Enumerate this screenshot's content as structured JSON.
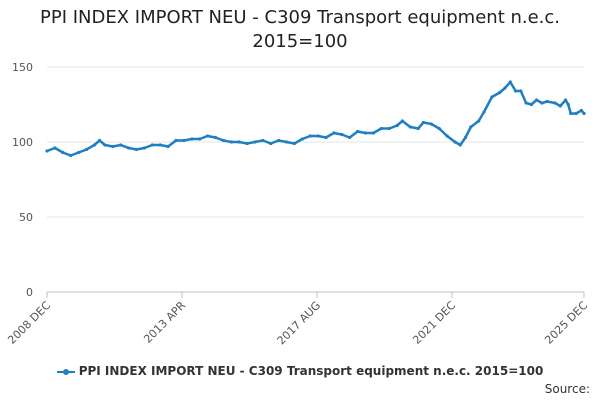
{
  "title_line1": "PPI INDEX IMPORT NEU - C309 Transport equipment n.e.c.",
  "title_line2": "2015=100",
  "source_label": "Source:",
  "colors": {
    "series": "#1f7fc0",
    "grid": "#e6e6e6",
    "axis": "#c0c0c0",
    "text": "#555555"
  },
  "chart_data": {
    "type": "line",
    "title": "PPI INDEX IMPORT NEU - C309 Transport equipment n.e.c. 2015=100",
    "xlabel": "",
    "ylabel": "",
    "ylim": [
      0,
      160
    ],
    "yticks": [
      0,
      50,
      100,
      150
    ],
    "grid": true,
    "legend_position": "bottom",
    "x_tick_labels": [
      "2008 DEC",
      "2013 APR",
      "2017 AUG",
      "2021 DEC",
      "2025 DEC"
    ],
    "series": [
      {
        "name": "PPI INDEX IMPORT NEU - C309 Transport equipment n.e.c. 2015=100",
        "color": "#1f7fc0",
        "points": [
          [
            "2008-12",
            94
          ],
          [
            "2009-03",
            96
          ],
          [
            "2009-06",
            93
          ],
          [
            "2009-09",
            91
          ],
          [
            "2009-12",
            93
          ],
          [
            "2010-03",
            95
          ],
          [
            "2010-06",
            98
          ],
          [
            "2010-08",
            101
          ],
          [
            "2010-10",
            98
          ],
          [
            "2011-01",
            97
          ],
          [
            "2011-04",
            98
          ],
          [
            "2011-07",
            96
          ],
          [
            "2011-10",
            95
          ],
          [
            "2012-01",
            96
          ],
          [
            "2012-04",
            98
          ],
          [
            "2012-07",
            98
          ],
          [
            "2012-10",
            97
          ],
          [
            "2013-01",
            101
          ],
          [
            "2013-04",
            101
          ],
          [
            "2013-07",
            102
          ],
          [
            "2013-10",
            102
          ],
          [
            "2014-01",
            104
          ],
          [
            "2014-04",
            103
          ],
          [
            "2014-07",
            101
          ],
          [
            "2014-10",
            100
          ],
          [
            "2015-01",
            100
          ],
          [
            "2015-04",
            99
          ],
          [
            "2015-07",
            100
          ],
          [
            "2015-10",
            101
          ],
          [
            "2016-01",
            99
          ],
          [
            "2016-04",
            101
          ],
          [
            "2016-07",
            100
          ],
          [
            "2016-10",
            99
          ],
          [
            "2017-01",
            102
          ],
          [
            "2017-04",
            104
          ],
          [
            "2017-07",
            104
          ],
          [
            "2017-10",
            103
          ],
          [
            "2018-01",
            106
          ],
          [
            "2018-04",
            105
          ],
          [
            "2018-07",
            103
          ],
          [
            "2018-10",
            107
          ],
          [
            "2019-01",
            106
          ],
          [
            "2019-04",
            106
          ],
          [
            "2019-07",
            109
          ],
          [
            "2019-10",
            109
          ],
          [
            "2020-01",
            111
          ],
          [
            "2020-03",
            114
          ],
          [
            "2020-06",
            110
          ],
          [
            "2020-09",
            109
          ],
          [
            "2020-11",
            113
          ],
          [
            "2021-02",
            112
          ],
          [
            "2021-05",
            109
          ],
          [
            "2021-08",
            104
          ],
          [
            "2021-11",
            100
          ],
          [
            "2022-01",
            98
          ],
          [
            "2022-03",
            103
          ],
          [
            "2022-05",
            110
          ],
          [
            "2022-08",
            114
          ],
          [
            "2022-10",
            120
          ],
          [
            "2023-01",
            130
          ],
          [
            "2023-04",
            133
          ],
          [
            "2023-06",
            136
          ],
          [
            "2023-08",
            140
          ],
          [
            "2023-10",
            134
          ],
          [
            "2023-12",
            134
          ],
          [
            "2024-02",
            126
          ],
          [
            "2024-04",
            125
          ],
          [
            "2024-06",
            128
          ],
          [
            "2024-08",
            126
          ],
          [
            "2024-10",
            127
          ],
          [
            "2025-01",
            126
          ],
          [
            "2025-03",
            124
          ],
          [
            "2025-05",
            128
          ],
          [
            "2025-06",
            125
          ],
          [
            "2025-07",
            119
          ],
          [
            "2025-09",
            119
          ],
          [
            "2025-11",
            121
          ],
          [
            "2025-12",
            119
          ]
        ]
      }
    ]
  }
}
